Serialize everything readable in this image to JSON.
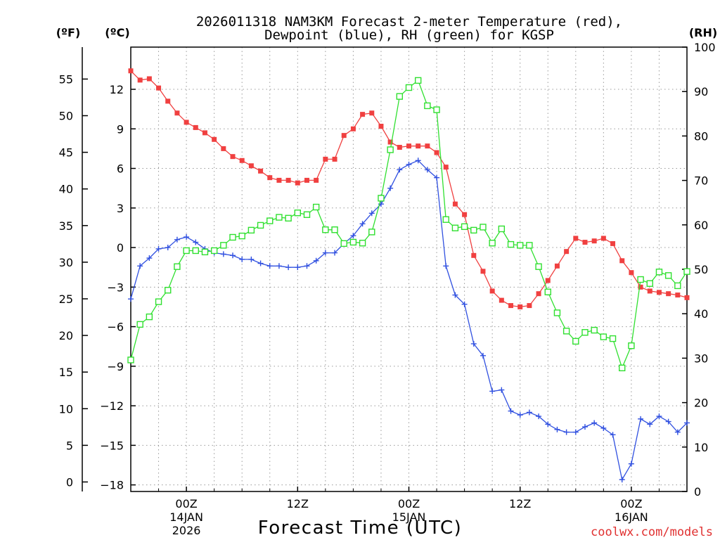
{
  "chart_data": {
    "type": "line",
    "title_lines": [
      "2026011318 NAM3KM Forecast 2-meter Temperature (red),",
      "Dewpoint (blue), RH (green) for KGSP"
    ],
    "xlabel": "Forecast Time (UTC)",
    "credit": "coolwx.com/models",
    "left_axis_f_label": "(ºF)",
    "left_axis_c_label": "(ºC)",
    "right_axis_label": "(RH)",
    "xlim_hours": [
      -6,
      54
    ],
    "ylim_c": [
      -18.5,
      15.2
    ],
    "ylim_rh": [
      0,
      100
    ],
    "f_ticks": [
      "55",
      "50",
      "45",
      "40",
      "35",
      "30",
      "25",
      "20",
      "15",
      "10",
      "5",
      "0"
    ],
    "f_tick_values": [
      55,
      50,
      45,
      40,
      35,
      30,
      25,
      20,
      15,
      10,
      5,
      0
    ],
    "c_ticks": [
      "12",
      "9",
      "6",
      "3",
      "0",
      "−3",
      "−6",
      "−9",
      "−12",
      "−15",
      "−18"
    ],
    "c_tick_values": [
      12,
      9,
      6,
      3,
      0,
      -3,
      -6,
      -9,
      -12,
      -15,
      -18
    ],
    "rh_ticks": [
      "100",
      "90",
      "80",
      "70",
      "60",
      "50",
      "40",
      "30",
      "20",
      "10",
      "0"
    ],
    "rh_tick_values": [
      100,
      90,
      80,
      70,
      60,
      50,
      40,
      30,
      20,
      10,
      0
    ],
    "x_ticks": [
      {
        "hour": 0,
        "label": "00Z",
        "date": "14JAN",
        "year": "2026"
      },
      {
        "hour": 12,
        "label": "12Z",
        "date": "",
        "year": ""
      },
      {
        "hour": 24,
        "label": "00Z",
        "date": "15JAN",
        "year": ""
      },
      {
        "hour": 36,
        "label": "12Z",
        "date": "",
        "year": ""
      },
      {
        "hour": 48,
        "label": "00Z",
        "date": "16JAN",
        "year": ""
      }
    ],
    "x_grid_hours": [
      -3,
      3,
      6,
      9,
      15,
      18,
      21,
      27,
      30,
      33,
      39,
      42,
      45,
      51
    ],
    "hours": [
      -6,
      -5,
      -4,
      -3,
      -2,
      -1,
      0,
      1,
      2,
      3,
      4,
      5,
      6,
      7,
      8,
      9,
      10,
      11,
      12,
      13,
      14,
      15,
      16,
      17,
      18,
      19,
      20,
      21,
      22,
      23,
      24,
      25,
      26,
      27,
      28,
      29,
      30,
      31,
      32,
      33,
      34,
      35,
      36,
      37,
      38,
      39,
      40,
      41,
      42,
      43,
      44,
      45,
      46,
      47,
      48,
      49,
      50,
      51,
      52,
      53,
      54
    ],
    "series": [
      {
        "name": "2-meter Temperature",
        "color": "#f04040",
        "marker": "filled-square",
        "axis": "celsius",
        "values": [
          13.4,
          12.7,
          12.8,
          12.1,
          11.1,
          10.2,
          9.5,
          9.1,
          8.7,
          8.2,
          7.5,
          6.9,
          6.6,
          6.2,
          5.8,
          5.3,
          5.1,
          5.1,
          4.9,
          5.1,
          5.1,
          6.7,
          6.7,
          8.5,
          9.0,
          10.1,
          10.2,
          9.2,
          8.0,
          7.6,
          7.7,
          7.7,
          7.7,
          7.2,
          6.1,
          3.3,
          2.5,
          -0.6,
          -1.8,
          -3.3,
          -4.0,
          -4.4,
          -4.5,
          -4.4,
          -3.5,
          -2.5,
          -1.4,
          -0.3,
          0.7,
          0.4,
          0.5,
          0.7,
          0.3,
          -1.0,
          -1.9,
          -3.0,
          -3.3,
          -3.4,
          -3.5,
          -3.6,
          -3.8
        ]
      },
      {
        "name": "Dewpoint",
        "color": "#3050e0",
        "marker": "plus",
        "axis": "celsius",
        "values": [
          -3.9,
          -1.4,
          -0.8,
          -0.1,
          0.0,
          0.6,
          0.8,
          0.4,
          -0.1,
          -0.4,
          -0.5,
          -0.6,
          -0.9,
          -0.9,
          -1.2,
          -1.4,
          -1.4,
          -1.5,
          -1.5,
          -1.4,
          -1.0,
          -0.4,
          -0.4,
          0.3,
          0.9,
          1.8,
          2.6,
          3.3,
          4.5,
          5.9,
          6.3,
          6.6,
          5.9,
          5.3,
          -1.4,
          -3.6,
          -4.3,
          -7.3,
          -8.2,
          -10.9,
          -10.8,
          -12.4,
          -12.7,
          -12.5,
          -12.8,
          -13.4,
          -13.8,
          -14.0,
          -14.0,
          -13.6,
          -13.3,
          -13.7,
          -14.2,
          -17.6,
          -16.4,
          -13.0,
          -13.4,
          -12.8,
          -13.2,
          -14.0,
          -13.3
        ]
      },
      {
        "name": "RH",
        "color": "#30e030",
        "marker": "open-square",
        "axis": "rh",
        "values": [
          29.6,
          37.6,
          39.3,
          42.7,
          45.3,
          50.6,
          54.2,
          54.2,
          53.9,
          54.2,
          55.4,
          57.2,
          57.5,
          58.8,
          59.9,
          60.9,
          61.7,
          61.5,
          62.7,
          62.3,
          64.0,
          58.9,
          58.9,
          55.8,
          56.1,
          55.9,
          58.4,
          66.0,
          76.9,
          88.9,
          90.9,
          92.5,
          86.8,
          85.9,
          61.2,
          59.3,
          59.6,
          58.8,
          59.5,
          55.9,
          59.1,
          55.6,
          55.4,
          55.4,
          50.6,
          44.9,
          40.2,
          36.1,
          33.8,
          35.8,
          36.3,
          34.8,
          34.4,
          27.8,
          32.8,
          47.7,
          46.8,
          49.4,
          48.6,
          46.3,
          49.5
        ]
      }
    ]
  }
}
